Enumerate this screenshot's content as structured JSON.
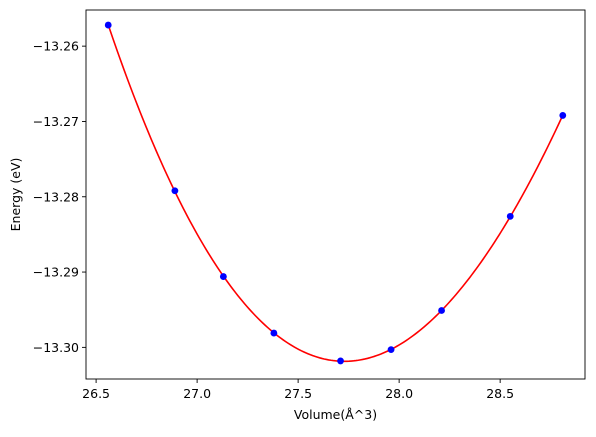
{
  "chart_data": {
    "type": "scatter",
    "title": "",
    "xlabel": "Volume(Å^3)",
    "ylabel": "Energy (eV)",
    "xlim": [
      26.45,
      28.92
    ],
    "ylim": [
      -13.3042,
      -13.2552
    ],
    "x_ticks": [
      26.5,
      27.0,
      27.5,
      28.0,
      28.5
    ],
    "x_tick_labels": [
      "26.5",
      "27.0",
      "27.5",
      "28.0",
      "28.5"
    ],
    "y_ticks": [
      -13.26,
      -13.27,
      -13.28,
      -13.29,
      -13.3
    ],
    "y_tick_labels": [
      "−13.26",
      "−13.27",
      "−13.28",
      "−13.29",
      "−13.30"
    ],
    "grid": false,
    "series": [
      {
        "type": "scatter",
        "color": "#0000ff",
        "points": [
          {
            "x": 26.56,
            "y": -13.2572
          },
          {
            "x": 26.89,
            "y": -13.2792
          },
          {
            "x": 27.13,
            "y": -13.2906
          },
          {
            "x": 27.38,
            "y": -13.2981
          },
          {
            "x": 27.71,
            "y": -13.3018
          },
          {
            "x": 27.96,
            "y": -13.3003
          },
          {
            "x": 28.21,
            "y": -13.2951
          },
          {
            "x": 28.55,
            "y": -13.2826
          },
          {
            "x": 28.81,
            "y": -13.2692
          }
        ]
      },
      {
        "type": "line",
        "color": "#ff0000",
        "fit": "cubic",
        "x_range": [
          26.56,
          28.81
        ]
      }
    ]
  }
}
